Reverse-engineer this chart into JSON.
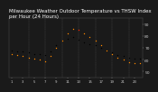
{
  "title": "Milwaukee Weather Outdoor Temperature vs THSW Index per Hour (24 Hours)",
  "title_fontsize": 4.0,
  "background_color": "#1a1a1a",
  "plot_bg_color": "#1a1a1a",
  "grid_color": "#555555",
  "hours": [
    1,
    2,
    3,
    4,
    5,
    6,
    7,
    8,
    9,
    10,
    11,
    12,
    13,
    14,
    15,
    16,
    17,
    18,
    19,
    20,
    21,
    22,
    23,
    24
  ],
  "temp": [
    68,
    67,
    67,
    66,
    65,
    65,
    64,
    67,
    72,
    76,
    78,
    79,
    77,
    75,
    73,
    72,
    70,
    68,
    66,
    64,
    63,
    62,
    61,
    61
  ],
  "thsw": [
    65,
    64,
    63,
    62,
    61,
    60,
    59,
    63,
    70,
    76,
    82,
    86,
    85,
    82,
    79,
    76,
    72,
    68,
    65,
    62,
    60,
    58,
    57,
    57
  ],
  "temp_color": "#000000",
  "thsw_color": "#ff8800",
  "thsw_red_indices": [
    12
  ],
  "thsw_red_color": "#ff2200",
  "ylim": [
    45,
    95
  ],
  "ytick_values": [
    50,
    60,
    70,
    80,
    90
  ],
  "ytick_labels": [
    "50",
    "60",
    "70",
    "80",
    "90"
  ],
  "ylabel_fontsize": 3.2,
  "xlabel_fontsize": 2.8,
  "marker_size": 1.0,
  "vgrid_positions": [
    4,
    7,
    10,
    13,
    16,
    19,
    22
  ],
  "xtick_step": 3,
  "xlim": [
    0.5,
    24.5
  ]
}
